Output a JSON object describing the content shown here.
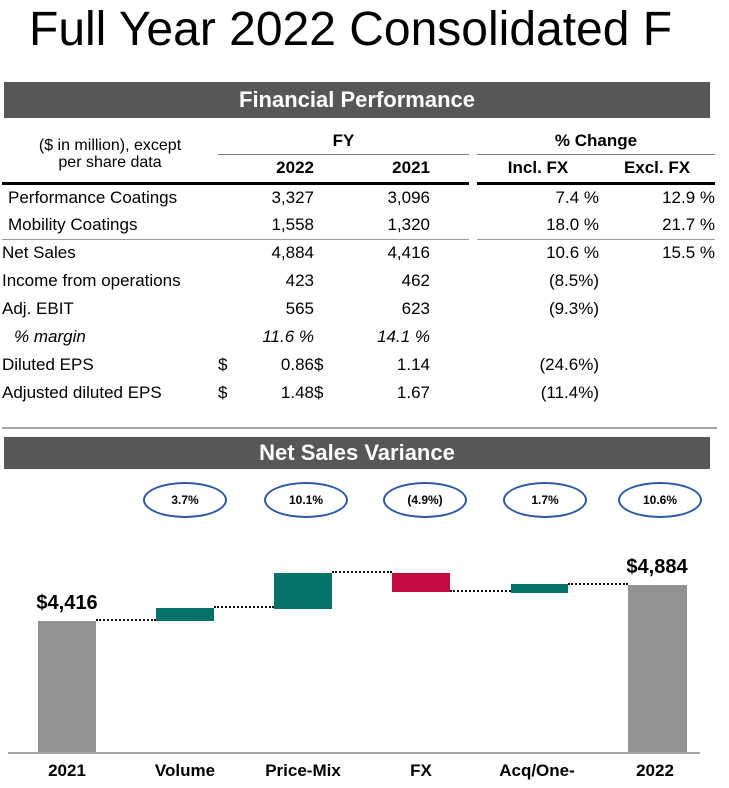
{
  "title": "Full Year 2022 Consolidated F",
  "colors": {
    "header_bar": "#575757",
    "bar_gray": "#929292",
    "bar_teal": "#067268",
    "bar_red": "#C40A42",
    "bubble_border": "#2B57A5",
    "axis_line": "#A6A6A6"
  },
  "financial_performance": {
    "section_title": "Financial Performance",
    "note_line1": "($ in million), except",
    "note_line2": "per share data",
    "col_groups": {
      "fy": "FY",
      "pct_change": "% Change"
    },
    "col_headers": {
      "fy_2022": "2022",
      "fy_2021": "2021",
      "incl_fx": "Incl. FX",
      "excl_fx": "Excl. FX"
    },
    "rows": [
      {
        "label": "Performance Coatings",
        "d1": "",
        "v2022": "3,327",
        "d2": "",
        "v2021": "3,096",
        "incl": "7.4 %",
        "excl": "12.9 %"
      },
      {
        "label": "Mobility Coatings",
        "d1": "",
        "v2022": "1,558",
        "d2": "",
        "v2021": "1,320",
        "incl": "18.0 %",
        "excl": "21.7 %"
      },
      {
        "label": "Net Sales",
        "d1": "",
        "v2022": "4,884",
        "d2": "",
        "v2021": "4,416",
        "incl": "10.6 %",
        "excl": "15.5 %"
      },
      {
        "label": "Income from operations",
        "d1": "",
        "v2022": "423",
        "d2": "",
        "v2021": "462",
        "incl": "(8.5%)",
        "excl": ""
      },
      {
        "label": "Adj. EBIT",
        "d1": "",
        "v2022": "565",
        "d2": "",
        "v2021": "623",
        "incl": "(9.3%)",
        "excl": ""
      },
      {
        "label": "% margin",
        "d1": "",
        "v2022": "11.6 %",
        "d2": "",
        "v2021": "14.1 %",
        "incl": "",
        "excl": ""
      },
      {
        "label": "Diluted EPS",
        "d1": "$",
        "v2022": "0.86",
        "d2": "$",
        "v2021": "1.14",
        "incl": "(24.6%)",
        "excl": ""
      },
      {
        "label": "Adjusted diluted EPS",
        "d1": "$",
        "v2022": "1.48",
        "d2": "$",
        "v2021": "1.67",
        "incl": "(11.4%)",
        "excl": ""
      }
    ]
  },
  "net_sales_variance": {
    "section_title": "Net Sales Variance",
    "ovals": [
      "3.7%",
      "10.1%",
      "(4.9%)",
      "1.7%",
      "10.6%"
    ],
    "start_label": "$4,416",
    "end_label": "$4,884",
    "x_labels": [
      "2021",
      "Volume",
      "Price-Mix",
      "FX",
      "Acq/One-",
      "2022"
    ]
  },
  "chart_data": {
    "type": "bar",
    "subtype": "waterfall",
    "title": "Net Sales Variance",
    "categories": [
      "2021",
      "Volume",
      "Price-Mix",
      "FX",
      "Acq/One-",
      "2022"
    ],
    "start_value": 4416,
    "end_value": 4884,
    "delta_pct": [
      null,
      3.7,
      10.1,
      -4.9,
      1.7,
      10.6
    ],
    "endpoint_labels": {
      "2021": "$4,416",
      "2022": "$4,884"
    },
    "bar_colors": [
      "#929292",
      "#067268",
      "#067268",
      "#C40A42",
      "#067268",
      "#929292"
    ],
    "xlabel": "",
    "ylabel": "",
    "grid": false,
    "legend": "none"
  }
}
